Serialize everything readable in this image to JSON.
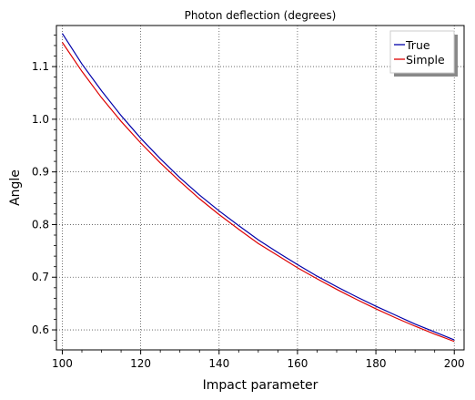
{
  "chart_data": {
    "type": "line",
    "title": "Photon deflection (degrees)",
    "xlabel": "Impact parameter",
    "ylabel": "Angle",
    "xlim": [
      98.5,
      202.5
    ],
    "ylim": [
      0.562,
      1.178
    ],
    "x_ticks": [
      100,
      120,
      140,
      160,
      180,
      200
    ],
    "y_ticks": [
      0.6,
      0.7,
      0.8,
      0.9,
      1.0,
      1.1
    ],
    "grid": true,
    "legend_position": "top-right",
    "x": [
      100,
      105,
      110,
      115,
      120,
      125,
      130,
      135,
      140,
      145,
      150,
      155,
      160,
      165,
      170,
      175,
      180,
      185,
      190,
      195,
      200
    ],
    "series": [
      {
        "name": "True",
        "color": "#0000aa",
        "values": [
          1.163,
          1.105,
          1.054,
          1.007,
          0.964,
          0.925,
          0.889,
          0.856,
          0.826,
          0.798,
          0.771,
          0.747,
          0.724,
          0.702,
          0.682,
          0.663,
          0.645,
          0.628,
          0.611,
          0.596,
          0.581
        ]
      },
      {
        "name": "Simple",
        "color": "#dd0000",
        "values": [
          1.146,
          1.091,
          1.041,
          0.996,
          0.955,
          0.917,
          0.882,
          0.849,
          0.819,
          0.791,
          0.764,
          0.741,
          0.718,
          0.697,
          0.677,
          0.658,
          0.64,
          0.623,
          0.607,
          0.592,
          0.578
        ]
      }
    ]
  }
}
